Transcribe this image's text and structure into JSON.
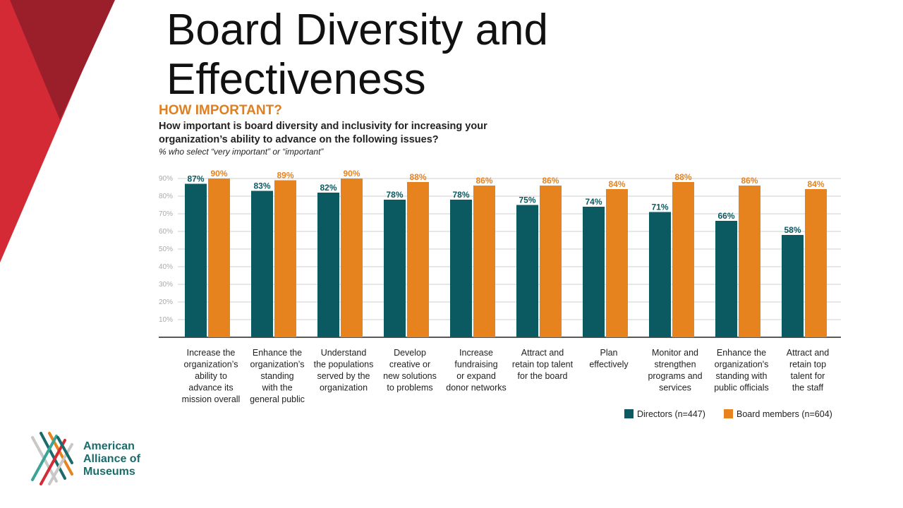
{
  "slide": {
    "title": "Board Diversity and Effectiveness",
    "kicker": "HOW IMPORTANT?",
    "question": "How important is board diversity and inclusivity for increasing your organization’s ability to advance on the following issues?",
    "subnote": "% who select “very important” or “important”"
  },
  "logo": {
    "lines": [
      "American",
      "Alliance of",
      "Museums"
    ],
    "icon": "aam-lattice-logo-icon"
  },
  "colors": {
    "directors": "#0b5961",
    "board": "#e6831f",
    "kicker": "#e07f1f",
    "deco_red": "#d42a35",
    "deco_dark": "#9a1f2b"
  },
  "chart_data": {
    "type": "bar",
    "title": "",
    "xlabel": "",
    "ylabel": "",
    "ylim": [
      0,
      90
    ],
    "y_ticks": [
      "90%",
      "80%",
      "70%",
      "60%",
      "50%",
      "40%",
      "30%",
      "20%",
      "10%"
    ],
    "y_tick_values": [
      90,
      80,
      70,
      60,
      50,
      40,
      30,
      20,
      10
    ],
    "grid": true,
    "legend_position": "bottom-right",
    "categories": [
      [
        "Increase the",
        "organization’s",
        "ability to",
        "advance its",
        "mission overall"
      ],
      [
        "Enhance the",
        "organization’s",
        "standing",
        "with the",
        "general public"
      ],
      [
        "Understand",
        "the populations",
        "served by the",
        "organization"
      ],
      [
        "Develop",
        "creative or",
        "new solutions",
        "to problems"
      ],
      [
        "Increase",
        "fundraising",
        "or expand",
        "donor networks"
      ],
      [
        "Attract and",
        "retain top talent",
        "for the board"
      ],
      [
        "Plan",
        "effectively"
      ],
      [
        "Monitor and",
        "strengthen",
        "programs and",
        "services"
      ],
      [
        "Enhance the",
        "organization's",
        "standing with",
        "public officials"
      ],
      [
        "Attract and",
        "retain top",
        "talent for",
        "the staff"
      ]
    ],
    "series": [
      {
        "name": "Directors (n=447)",
        "values": [
          87,
          83,
          82,
          78,
          78,
          75,
          74,
          71,
          66,
          58
        ],
        "labels": [
          "87%",
          "83%",
          "82%",
          "78%",
          "78%",
          "75%",
          "74%",
          "71%",
          "66%",
          "58%"
        ]
      },
      {
        "name": "Board members (n=604)",
        "values": [
          90,
          89,
          90,
          88,
          86,
          86,
          84,
          88,
          86,
          84
        ],
        "labels": [
          "90%",
          "89%",
          "90%",
          "88%",
          "86%",
          "86%",
          "84%",
          "88%",
          "86%",
          "84%"
        ]
      }
    ]
  }
}
